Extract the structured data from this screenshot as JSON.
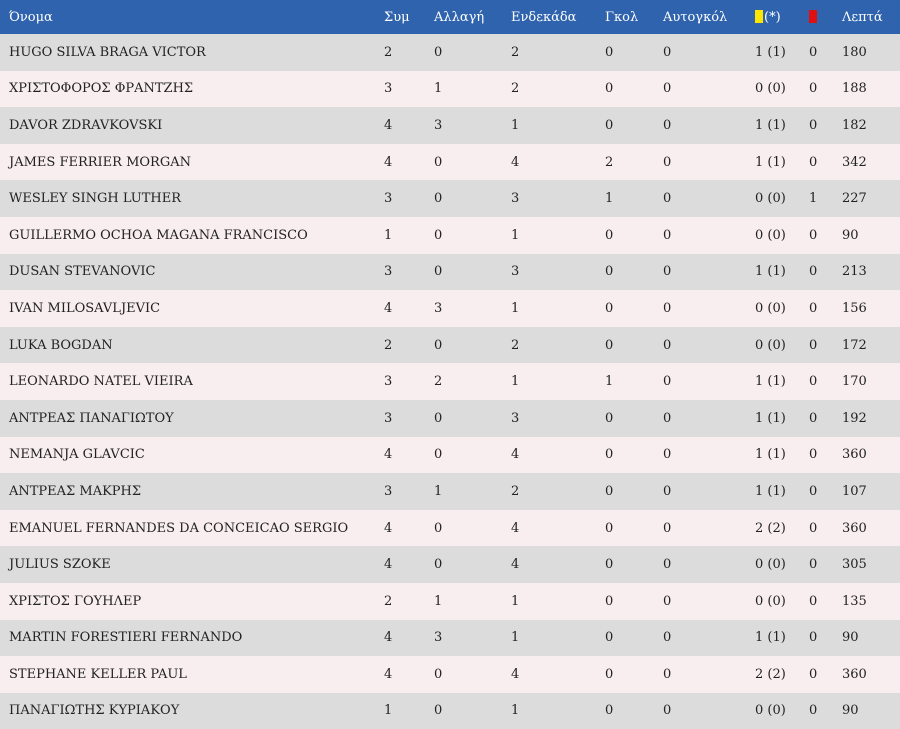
{
  "header": {
    "name": "Όνομα",
    "appearances": "Συμ",
    "substitutions": "Αλλαγή",
    "starts": "Ενδεκάδα",
    "goals": "Γκολ",
    "own_goals": "Αυτογκόλ",
    "yellow_suffix": "(*)",
    "minutes": "Λεπτά"
  },
  "colors": {
    "header_bg": "#2f63ad",
    "row_odd": "#dcdcdc",
    "row_even": "#f8eef0",
    "yellow_card": "#ffe600",
    "red_card": "#e01010"
  },
  "icons": {
    "yellow": "yellow-card-icon",
    "red": "red-card-icon"
  },
  "rows": [
    {
      "name": "HUGO SILVA BRAGA VICTOR",
      "apps": "2",
      "subs": "0",
      "starts": "2",
      "goals": "0",
      "own_goals": "0",
      "yellow": "1 (1)",
      "red": "0",
      "minutes": "180"
    },
    {
      "name": "ΧΡΙΣΤΟΦΟΡΟΣ ΦΡΑΝΤΖΗΣ",
      "apps": "3",
      "subs": "1",
      "starts": "2",
      "goals": "0",
      "own_goals": "0",
      "yellow": "0 (0)",
      "red": "0",
      "minutes": "188"
    },
    {
      "name": "DAVOR ZDRAVKOVSKI",
      "apps": "4",
      "subs": "3",
      "starts": "1",
      "goals": "0",
      "own_goals": "0",
      "yellow": "1 (1)",
      "red": "0",
      "minutes": "182"
    },
    {
      "name": "JAMES FERRIER MORGAN",
      "apps": "4",
      "subs": "0",
      "starts": "4",
      "goals": "2",
      "own_goals": "0",
      "yellow": "1 (1)",
      "red": "0",
      "minutes": "342"
    },
    {
      "name": "WESLEY SINGH LUTHER",
      "apps": "3",
      "subs": "0",
      "starts": "3",
      "goals": "1",
      "own_goals": "0",
      "yellow": "0 (0)",
      "red": "1",
      "minutes": "227"
    },
    {
      "name": "GUILLERMO OCHOA MAGANA FRANCISCO",
      "apps": "1",
      "subs": "0",
      "starts": "1",
      "goals": "0",
      "own_goals": "0",
      "yellow": "0 (0)",
      "red": "0",
      "minutes": "90"
    },
    {
      "name": "DUSAN STEVANOVIC",
      "apps": "3",
      "subs": "0",
      "starts": "3",
      "goals": "0",
      "own_goals": "0",
      "yellow": "1 (1)",
      "red": "0",
      "minutes": "213"
    },
    {
      "name": "IVAN MILOSAVLJEVIC",
      "apps": "4",
      "subs": "3",
      "starts": "1",
      "goals": "0",
      "own_goals": "0",
      "yellow": "0 (0)",
      "red": "0",
      "minutes": "156"
    },
    {
      "name": "LUKA BOGDAN",
      "apps": "2",
      "subs": "0",
      "starts": "2",
      "goals": "0",
      "own_goals": "0",
      "yellow": "0 (0)",
      "red": "0",
      "minutes": "172"
    },
    {
      "name": "LEONARDO NATEL VIEIRA",
      "apps": "3",
      "subs": "2",
      "starts": "1",
      "goals": "1",
      "own_goals": "0",
      "yellow": "1 (1)",
      "red": "0",
      "minutes": "170"
    },
    {
      "name": "ΑΝΤΡΕΑΣ ΠΑΝΑΓΙΩΤΟΥ",
      "apps": "3",
      "subs": "0",
      "starts": "3",
      "goals": "0",
      "own_goals": "0",
      "yellow": "1 (1)",
      "red": "0",
      "minutes": "192"
    },
    {
      "name": "NEMANJA GLAVCIC",
      "apps": "4",
      "subs": "0",
      "starts": "4",
      "goals": "0",
      "own_goals": "0",
      "yellow": "1 (1)",
      "red": "0",
      "minutes": "360"
    },
    {
      "name": "ΑΝΤΡΕΑΣ ΜΑΚΡΗΣ",
      "apps": "3",
      "subs": "1",
      "starts": "2",
      "goals": "0",
      "own_goals": "0",
      "yellow": "1 (1)",
      "red": "0",
      "minutes": "107"
    },
    {
      "name": "EMANUEL FERNANDES DA CONCEICAO SERGIO",
      "apps": "4",
      "subs": "0",
      "starts": "4",
      "goals": "0",
      "own_goals": "0",
      "yellow": "2 (2)",
      "red": "0",
      "minutes": "360"
    },
    {
      "name": "JULIUS SZOKE",
      "apps": "4",
      "subs": "0",
      "starts": "4",
      "goals": "0",
      "own_goals": "0",
      "yellow": "0 (0)",
      "red": "0",
      "minutes": "305"
    },
    {
      "name": "ΧΡΙΣΤΟΣ ΓΟΥΗΛΕΡ",
      "apps": "2",
      "subs": "1",
      "starts": "1",
      "goals": "0",
      "own_goals": "0",
      "yellow": "0 (0)",
      "red": "0",
      "minutes": "135"
    },
    {
      "name": "MARTIN FORESTIERI FERNANDO",
      "apps": "4",
      "subs": "3",
      "starts": "1",
      "goals": "0",
      "own_goals": "0",
      "yellow": "1 (1)",
      "red": "0",
      "minutes": "90"
    },
    {
      "name": "STEPHANE KELLER PAUL",
      "apps": "4",
      "subs": "0",
      "starts": "4",
      "goals": "0",
      "own_goals": "0",
      "yellow": "2 (2)",
      "red": "0",
      "minutes": "360"
    },
    {
      "name": "ΠΑΝΑΓΙΩΤΗΣ ΚΥΡΙΑΚΟΥ",
      "apps": "1",
      "subs": "0",
      "starts": "1",
      "goals": "0",
      "own_goals": "0",
      "yellow": "0 (0)",
      "red": "0",
      "minutes": "90"
    }
  ]
}
